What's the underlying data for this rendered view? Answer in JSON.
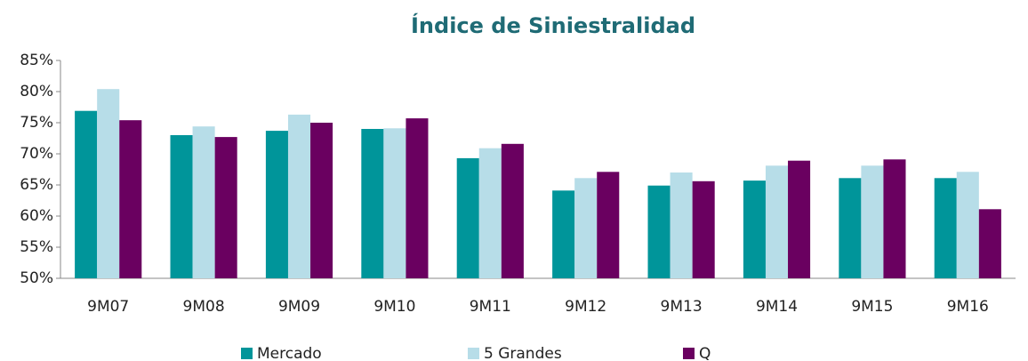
{
  "chart_data": {
    "type": "bar",
    "title": "Índice de Siniestralidad",
    "categories": [
      "9M07",
      "9M08",
      "9M09",
      "9M10",
      "9M11",
      "9M12",
      "9M13",
      "9M14",
      "9M15",
      "9M16"
    ],
    "series": [
      {
        "name": "Mercado",
        "color": "#00959a",
        "values": [
          76.9,
          73.0,
          73.7,
          74.0,
          69.3,
          64.1,
          64.9,
          65.7,
          66.1,
          66.1
        ]
      },
      {
        "name": "5 Grandes",
        "color": "#b7dde8",
        "values": [
          80.4,
          74.4,
          76.3,
          74.1,
          70.9,
          66.1,
          67.0,
          68.1,
          68.1,
          67.1
        ]
      },
      {
        "name": "Q",
        "color": "#6a0060",
        "values": [
          75.4,
          72.7,
          75.0,
          75.7,
          71.6,
          67.1,
          65.6,
          68.9,
          69.1,
          61.1
        ]
      }
    ],
    "ylim": [
      50,
      85
    ],
    "yticks": [
      {
        "value": 50,
        "label": "50%"
      },
      {
        "value": 55,
        "label": "55%"
      },
      {
        "value": 60,
        "label": "60%"
      },
      {
        "value": 65,
        "label": "65%"
      },
      {
        "value": 70,
        "label": "70%"
      },
      {
        "value": 75,
        "label": "75%"
      },
      {
        "value": 80,
        "label": "80%"
      },
      {
        "value": 85,
        "label": "85%"
      }
    ],
    "legend": "bottom"
  }
}
